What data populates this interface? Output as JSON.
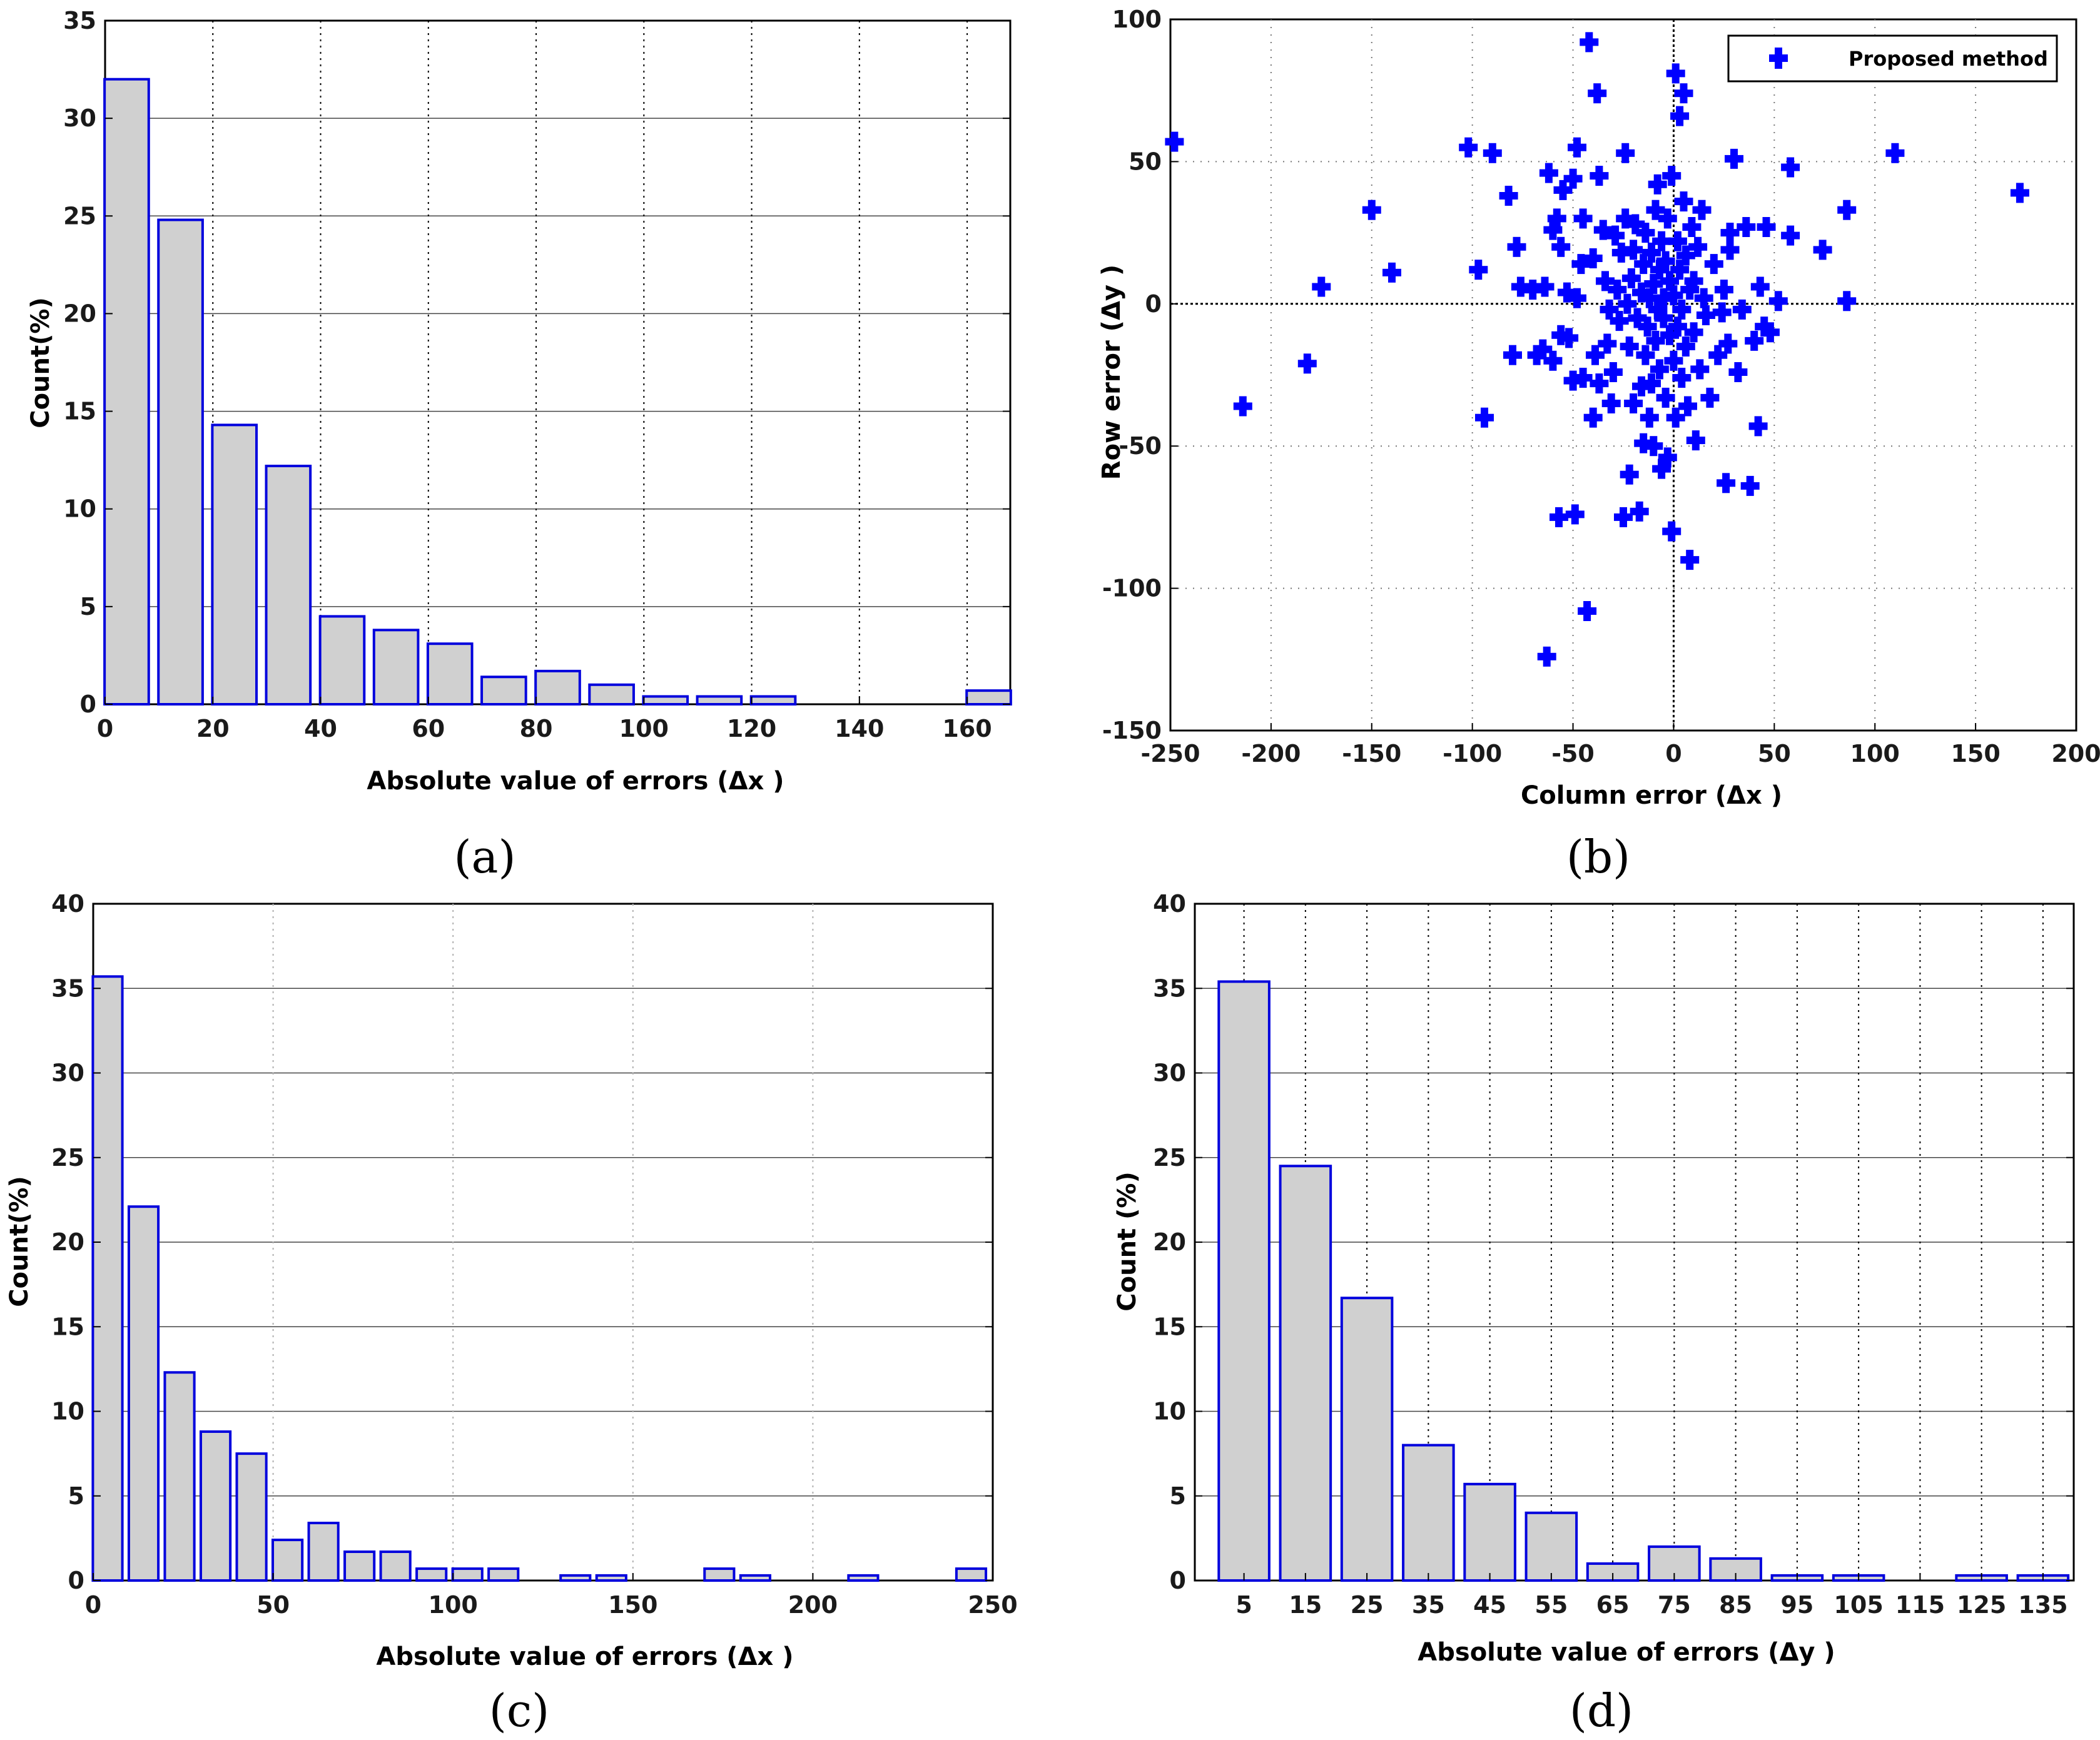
{
  "chart_data": [
    {
      "id": "a",
      "type": "bar",
      "panel_label": "(a)",
      "xlabel": "Absolute value of errors (Δx )",
      "ylabel": "Count(%)",
      "xlim": [
        0,
        168
      ],
      "ylim": [
        0,
        35
      ],
      "xticks": [
        "0",
        "20",
        "40",
        "60",
        "80",
        "100",
        "120",
        "140",
        "160"
      ],
      "yticks": [
        "0",
        "5",
        "10",
        "15",
        "20",
        "25",
        "30",
        "35"
      ],
      "bin_width": 10,
      "centers": [
        4,
        14,
        24,
        34,
        44,
        54,
        64,
        74,
        84,
        94,
        104,
        114,
        124,
        134,
        144,
        154,
        164
      ],
      "values": [
        32.0,
        24.8,
        14.3,
        12.2,
        4.5,
        3.8,
        3.1,
        1.4,
        1.7,
        1.0,
        0.4,
        0.4,
        0.4,
        0,
        0,
        0,
        0.7
      ]
    },
    {
      "id": "b",
      "type": "scatter",
      "panel_label": "(b)",
      "xlabel": "Column error (Δx )",
      "ylabel": "Row error (Δy )",
      "xlim": [
        -250,
        200
      ],
      "ylim": [
        -150,
        100
      ],
      "xticks": [
        "-250",
        "-200",
        "-150",
        "-100",
        "-50",
        "0",
        "50",
        "100",
        "150",
        "200"
      ],
      "yticks": [
        "-150",
        "-100",
        "-50",
        "0",
        "50",
        "100"
      ],
      "legend": "Proposed method",
      "legend_position": "top-right",
      "points": [
        [
          -248,
          57
        ],
        [
          -214,
          -36
        ],
        [
          -182,
          -21
        ],
        [
          -175,
          6
        ],
        [
          -150,
          33
        ],
        [
          -140,
          11
        ],
        [
          -102,
          55
        ],
        [
          -97,
          12
        ],
        [
          -94,
          -40
        ],
        [
          -90,
          53
        ],
        [
          -82,
          38
        ],
        [
          -80,
          -18
        ],
        [
          -78,
          20
        ],
        [
          -76,
          6
        ],
        [
          -70,
          5
        ],
        [
          -68,
          -18
        ],
        [
          -65,
          -16
        ],
        [
          -64,
          6
        ],
        [
          -63,
          -124
        ],
        [
          -62,
          46
        ],
        [
          -60,
          -20
        ],
        [
          -60,
          26
        ],
        [
          -58,
          30
        ],
        [
          -57,
          -75
        ],
        [
          -56,
          -11
        ],
        [
          -56,
          20
        ],
        [
          -55,
          40
        ],
        [
          -53,
          4
        ],
        [
          -52,
          -12
        ],
        [
          -50,
          44
        ],
        [
          -50,
          -27
        ],
        [
          -49,
          -74
        ],
        [
          -48,
          2
        ],
        [
          -48,
          55
        ],
        [
          -46,
          14
        ],
        [
          -45,
          -26
        ],
        [
          -45,
          30
        ],
        [
          -43,
          -108
        ],
        [
          -42,
          92
        ],
        [
          -40,
          -40
        ],
        [
          -40,
          16
        ],
        [
          -39,
          -18
        ],
        [
          -38,
          74
        ],
        [
          -37,
          45
        ],
        [
          -37,
          -28
        ],
        [
          -35,
          26
        ],
        [
          -34,
          8
        ],
        [
          -33,
          -14
        ],
        [
          -32,
          -2
        ],
        [
          -31,
          -35
        ],
        [
          -30,
          -24
        ],
        [
          -29,
          24
        ],
        [
          -28,
          5
        ],
        [
          -27,
          -6
        ],
        [
          -26,
          18
        ],
        [
          -25,
          -75
        ],
        [
          -24,
          30
        ],
        [
          -24,
          53
        ],
        [
          -23,
          0
        ],
        [
          -22,
          -15
        ],
        [
          -22,
          -60
        ],
        [
          -21,
          9
        ],
        [
          -20,
          -35
        ],
        [
          -20,
          19
        ],
        [
          -19,
          28
        ],
        [
          -18,
          -5
        ],
        [
          -17,
          -73
        ],
        [
          -16,
          -29
        ],
        [
          -16,
          4
        ],
        [
          -15,
          14
        ],
        [
          -15,
          -49
        ],
        [
          -14,
          -18
        ],
        [
          -14,
          25
        ],
        [
          -13,
          -8
        ],
        [
          -12,
          -40
        ],
        [
          -12,
          2
        ],
        [
          -11,
          18
        ],
        [
          -11,
          -28
        ],
        [
          -10,
          7
        ],
        [
          -10,
          -50
        ],
        [
          -9,
          -13
        ],
        [
          -9,
          33
        ],
        [
          -8,
          -2
        ],
        [
          -8,
          42
        ],
        [
          -7,
          -23
        ],
        [
          -7,
          12
        ],
        [
          -6,
          -58
        ],
        [
          -6,
          22
        ],
        [
          -5,
          2
        ],
        [
          -5,
          -5
        ],
        [
          -4,
          -33
        ],
        [
          -4,
          15
        ],
        [
          -3,
          -54
        ],
        [
          -3,
          30
        ],
        [
          -2,
          -11
        ],
        [
          -2,
          8
        ],
        [
          -1,
          -80
        ],
        [
          -1,
          45
        ],
        [
          0,
          -20
        ],
        [
          0,
          3
        ],
        [
          1,
          81
        ],
        [
          1,
          -40
        ],
        [
          2,
          22
        ],
        [
          2,
          -8
        ],
        [
          3,
          66
        ],
        [
          3,
          12
        ],
        [
          4,
          -26
        ],
        [
          4,
          -2
        ],
        [
          5,
          74
        ],
        [
          5,
          36
        ],
        [
          6,
          17
        ],
        [
          6,
          -15
        ],
        [
          7,
          -36
        ],
        [
          8,
          5
        ],
        [
          8,
          -90
        ],
        [
          9,
          27
        ],
        [
          10,
          -10
        ],
        [
          10,
          8
        ],
        [
          11,
          -48
        ],
        [
          12,
          20
        ],
        [
          13,
          -23
        ],
        [
          14,
          33
        ],
        [
          15,
          2
        ],
        [
          16,
          -4
        ],
        [
          18,
          -33
        ],
        [
          20,
          14
        ],
        [
          22,
          -18
        ],
        [
          24,
          -3
        ],
        [
          25,
          5
        ],
        [
          26,
          -63
        ],
        [
          27,
          -14
        ],
        [
          28,
          19
        ],
        [
          28,
          25
        ],
        [
          30,
          51
        ],
        [
          32,
          -24
        ],
        [
          34,
          -2
        ],
        [
          36,
          27
        ],
        [
          38,
          -64
        ],
        [
          40,
          -13
        ],
        [
          42,
          -43
        ],
        [
          43,
          6
        ],
        [
          45,
          -8
        ],
        [
          46,
          27
        ],
        [
          48,
          -10
        ],
        [
          52,
          1
        ],
        [
          58,
          24
        ],
        [
          58,
          48
        ],
        [
          74,
          19
        ],
        [
          86,
          33
        ],
        [
          86,
          1
        ],
        [
          110,
          53
        ],
        [
          172,
          39
        ]
      ]
    },
    {
      "id": "c",
      "type": "bar",
      "panel_label": "(c)",
      "xlabel": "Absolute value of errors (Δx )",
      "ylabel": "Count(%)",
      "xlim": [
        0,
        250
      ],
      "ylim": [
        0,
        40
      ],
      "xticks": [
        "0",
        "50",
        "100",
        "150",
        "200",
        "250"
      ],
      "yticks": [
        "0",
        "5",
        "10",
        "15",
        "20",
        "25",
        "30",
        "35",
        "40"
      ],
      "bin_width": 10,
      "centers": [
        4,
        14,
        24,
        34,
        44,
        54,
        64,
        74,
        84,
        94,
        104,
        114,
        124,
        134,
        144,
        154,
        164,
        174,
        184,
        194,
        204,
        214,
        224,
        234,
        244
      ],
      "values": [
        35.7,
        22.1,
        12.3,
        8.8,
        7.5,
        2.4,
        3.4,
        1.7,
        1.7,
        0.7,
        0.7,
        0.7,
        0,
        0.3,
        0.3,
        0,
        0,
        0.7,
        0.3,
        0,
        0,
        0.3,
        0,
        0,
        0.7
      ]
    },
    {
      "id": "d",
      "type": "bar",
      "panel_label": "(d)",
      "xlabel": "Absolute value of errors (Δy )",
      "ylabel": "Count (%)",
      "xlim": [
        -3,
        140
      ],
      "ylim": [
        0,
        40
      ],
      "xticks": [
        "5",
        "15",
        "25",
        "35",
        "45",
        "55",
        "65",
        "75",
        "85",
        "95",
        "105",
        "115",
        "125",
        "135"
      ],
      "yticks": [
        "0",
        "5",
        "10",
        "15",
        "20",
        "25",
        "30",
        "35",
        "40"
      ],
      "bin_width": 10,
      "centers": [
        5,
        15,
        25,
        35,
        45,
        55,
        65,
        75,
        85,
        95,
        105,
        115,
        125,
        135
      ],
      "values": [
        35.4,
        24.5,
        16.7,
        8.0,
        5.7,
        4.0,
        1.0,
        2.0,
        1.3,
        0.3,
        0.3,
        0,
        0.3,
        0.3
      ]
    }
  ]
}
